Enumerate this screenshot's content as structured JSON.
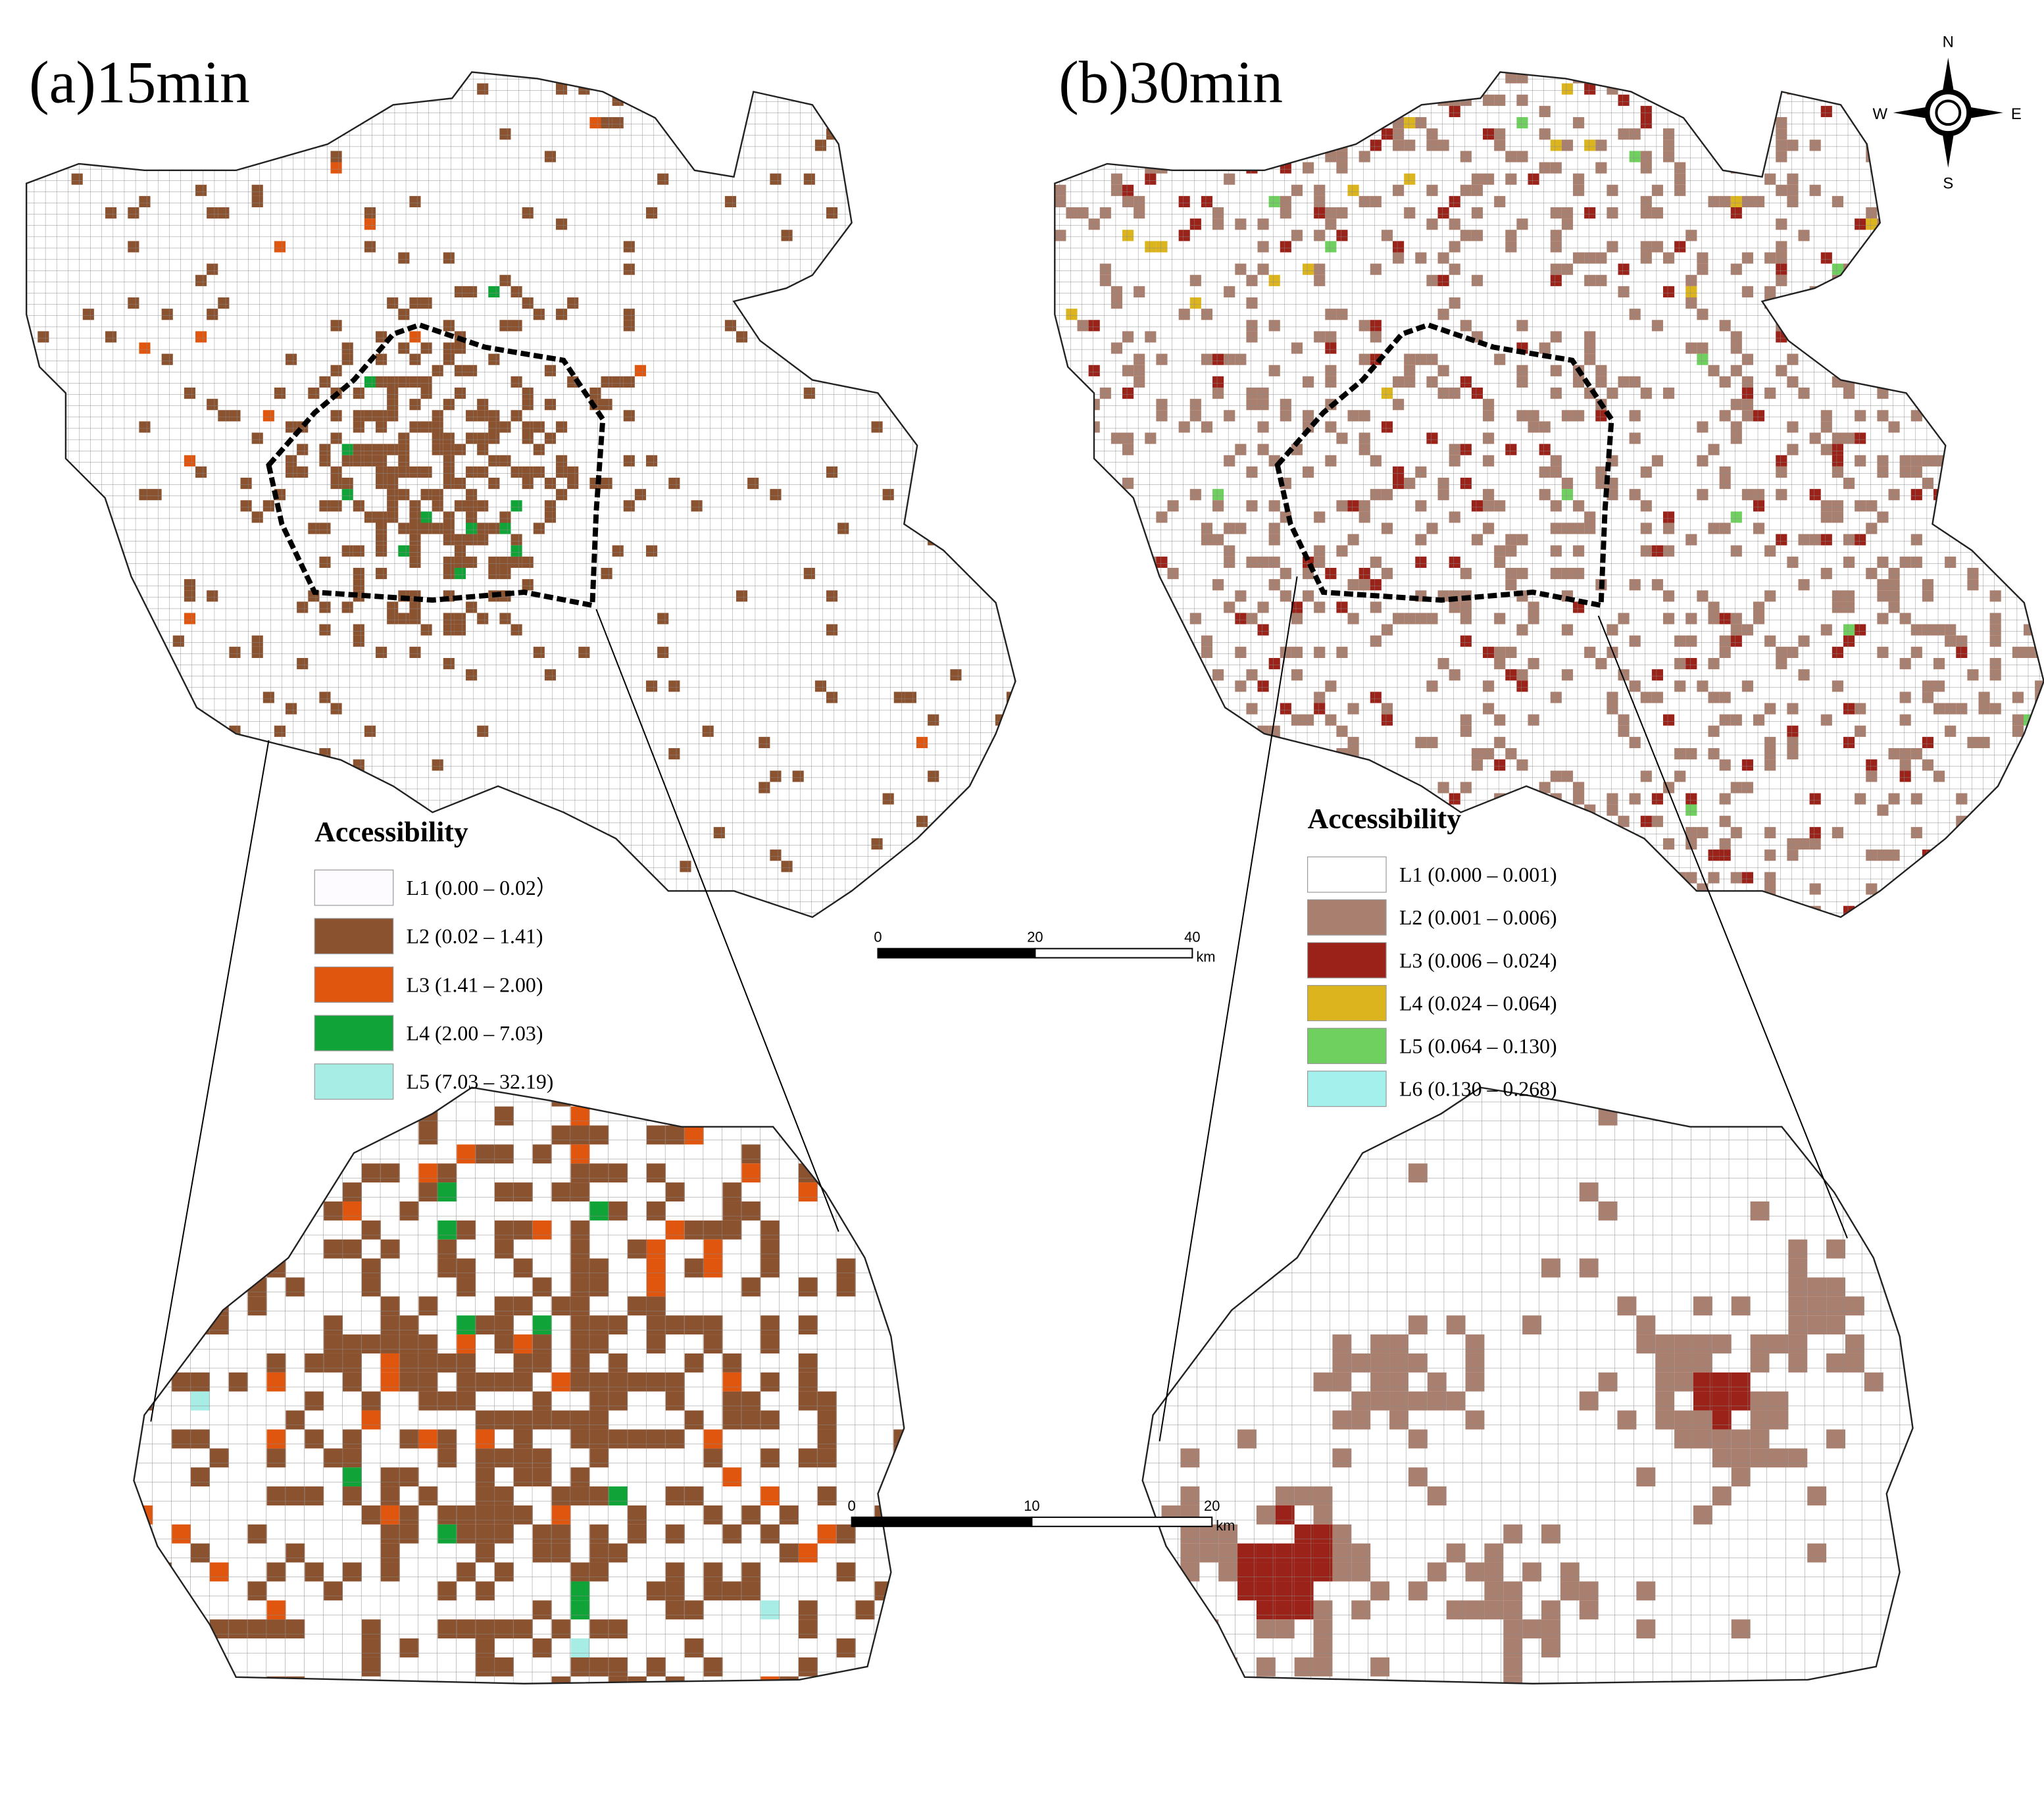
{
  "panels": [
    {
      "title": "(a)15min",
      "legend": {
        "title": "Accessibility",
        "items": [
          {
            "label": "L1 (0.00 – 0.02）",
            "color": "#fdfbff"
          },
          {
            "label": "L2 (0.02 – 1.41)",
            "color": "#8b5230"
          },
          {
            "label": "L3 (1.41 – 2.00)",
            "color": "#e0560f"
          },
          {
            "label": "L4 (2.00 – 7.03)",
            "color": "#10a438"
          },
          {
            "label": "L5 (7.03 – 32.19)",
            "color": "#a8ece6"
          }
        ]
      }
    },
    {
      "title": "(b)30min",
      "legend": {
        "title": "Accessibility",
        "items": [
          {
            "label": "L1 (0.000 – 0.001)",
            "color": "#ffffff"
          },
          {
            "label": "L2 (0.001 – 0.006)",
            "color": "#a97f6f"
          },
          {
            "label": "L3 (0.006 – 0.024)",
            "color": "#9a2218"
          },
          {
            "label": "L4 (0.024 – 0.064)",
            "color": "#dbb41e"
          },
          {
            "label": "L5 (0.064 – 0.130)",
            "color": "#6fcf5f"
          },
          {
            "label": "L6 (0.130 – 0.268)",
            "color": "#a4f0ec"
          }
        ]
      }
    }
  ],
  "scale_bars": [
    {
      "ticks": [
        0,
        20,
        40
      ],
      "unit": "km"
    },
    {
      "ticks": [
        0,
        10,
        20
      ],
      "unit": "km"
    }
  ],
  "compass": {
    "n": "N",
    "s": "S",
    "w": "W",
    "e": "E"
  }
}
